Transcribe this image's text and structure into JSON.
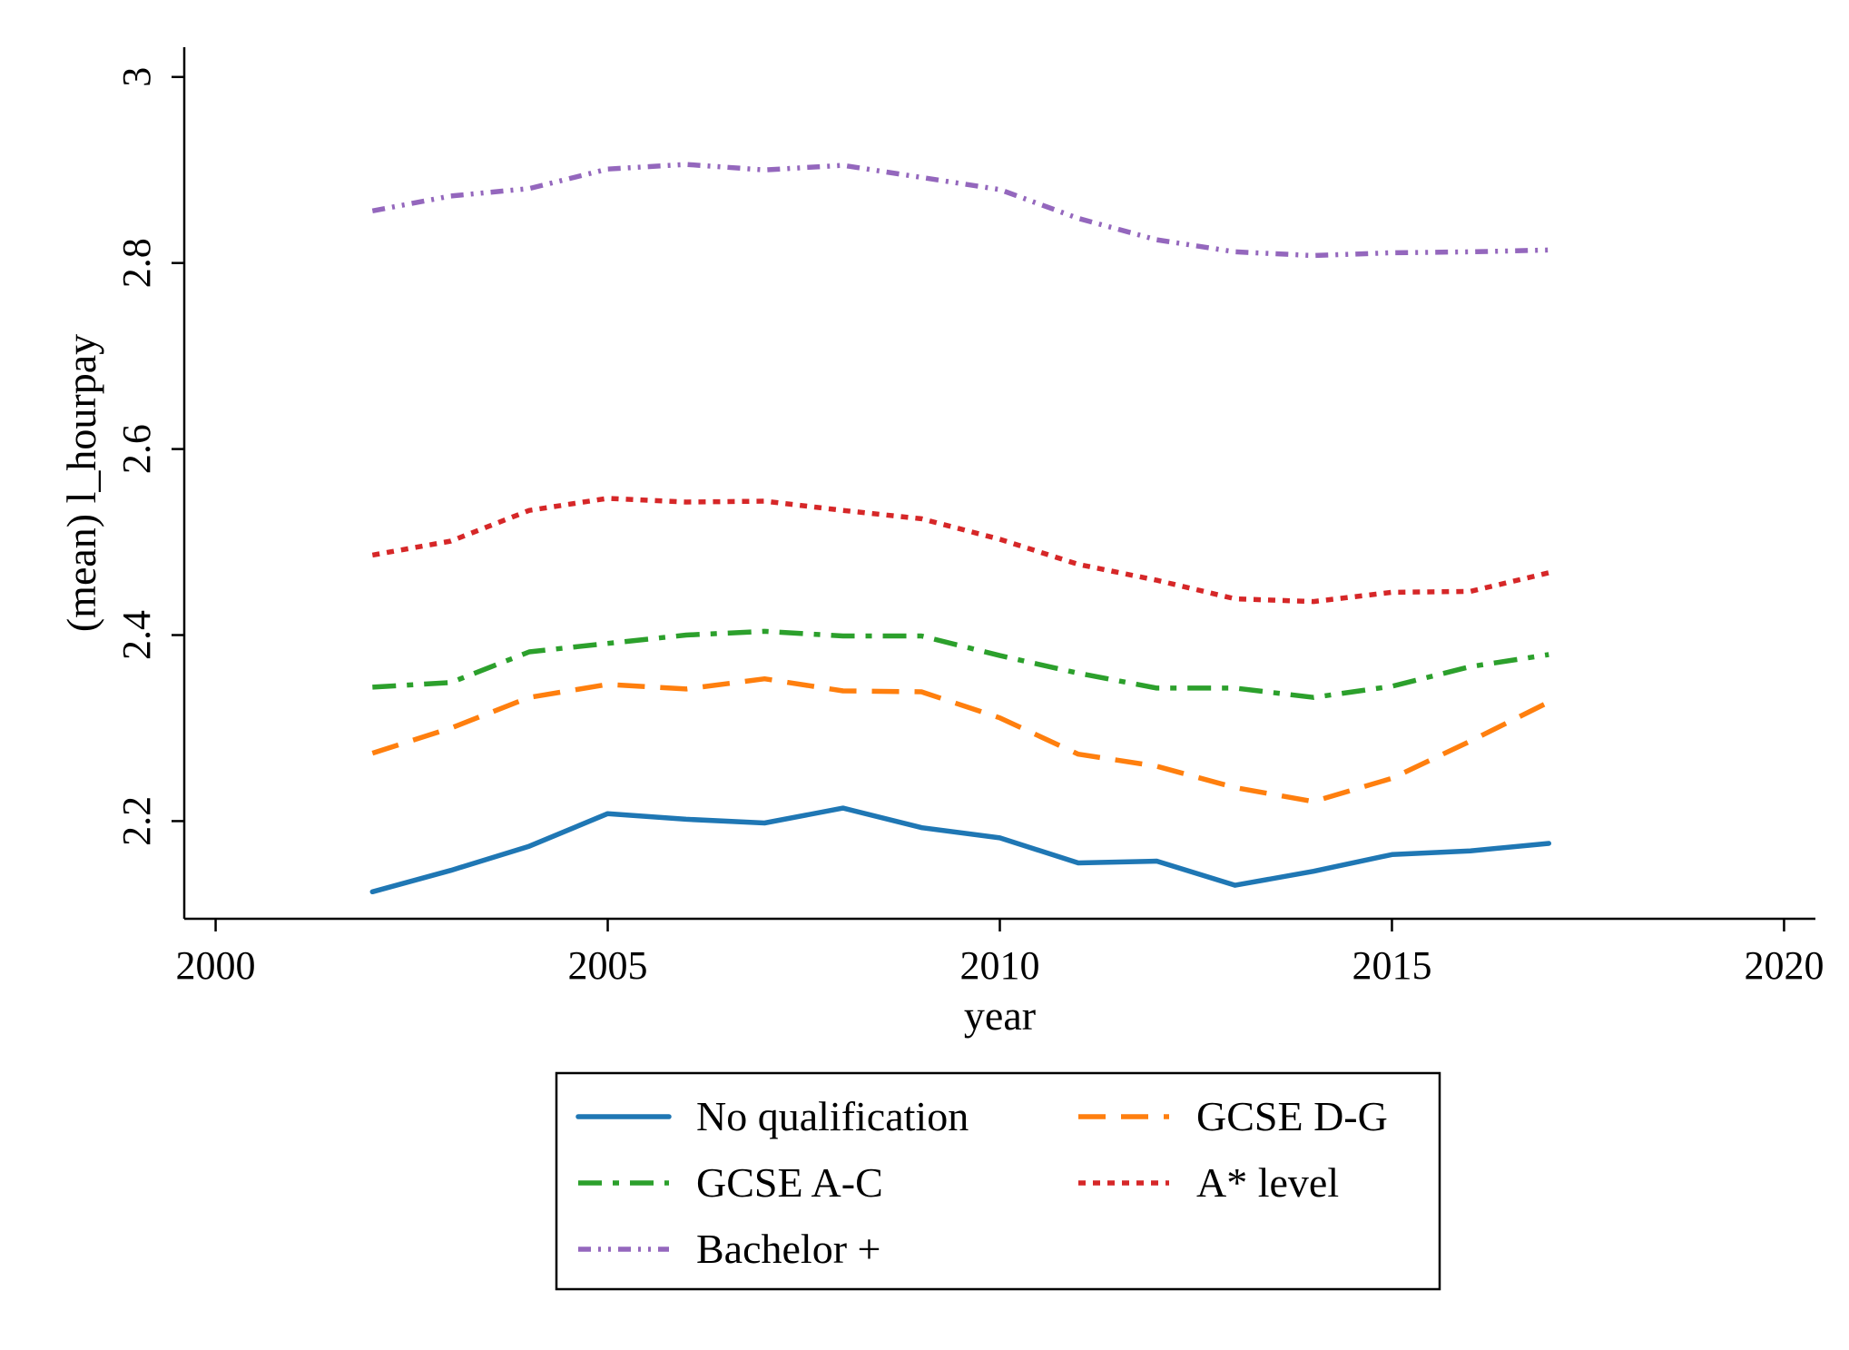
{
  "chart_data": {
    "type": "line",
    "title": "",
    "xlabel": "year",
    "ylabel": "(mean) l_hourpay",
    "xlim": [
      1999.6,
      2020.4
    ],
    "ylim": [
      2.095,
      3.032
    ],
    "x_ticks": [
      2000,
      2005,
      2010,
      2015,
      2020
    ],
    "x_tick_labels": [
      "2000",
      "2005",
      "2010",
      "2015",
      "2020"
    ],
    "y_ticks": [
      2.2,
      2.4,
      2.6,
      2.8,
      3.0
    ],
    "y_tick_labels": [
      "2.2",
      "2.4",
      "2.6",
      "2.8",
      "3"
    ],
    "grid": false,
    "legend_position": "bottom",
    "x": [
      2002,
      2003,
      2004,
      2005,
      2006,
      2007,
      2008,
      2009,
      2010,
      2011,
      2012,
      2013,
      2014,
      2015,
      2016,
      2017
    ],
    "series": [
      {
        "name": "No qualification",
        "color": "#1f77b4",
        "dash": "solid",
        "values": [
          2.124,
          2.147,
          2.173,
          2.208,
          2.202,
          2.198,
          2.214,
          2.193,
          2.182,
          2.155,
          2.157,
          2.131,
          2.146,
          2.164,
          2.168,
          2.176
        ]
      },
      {
        "name": "GCSE D-G",
        "color": "#ff7f0e",
        "dash": "dashed",
        "values": [
          2.273,
          2.3,
          2.333,
          2.347,
          2.342,
          2.353,
          2.34,
          2.339,
          2.311,
          2.272,
          2.259,
          2.236,
          2.221,
          2.246,
          2.286,
          2.328
        ]
      },
      {
        "name": "GCSE A-C",
        "color": "#2ca02c",
        "dash": "dashdot",
        "values": [
          2.344,
          2.349,
          2.382,
          2.391,
          2.4,
          2.404,
          2.399,
          2.399,
          2.378,
          2.359,
          2.343,
          2.343,
          2.333,
          2.345,
          2.366,
          2.379
        ]
      },
      {
        "name": "A* level",
        "color": "#d62728",
        "dash": "dotted",
        "values": [
          2.486,
          2.501,
          2.534,
          2.547,
          2.543,
          2.544,
          2.534,
          2.525,
          2.503,
          2.476,
          2.459,
          2.439,
          2.436,
          2.446,
          2.447,
          2.467
        ]
      },
      {
        "name": "Bachelor +",
        "color": "#9467bd",
        "dash": "dashdotdot",
        "values": [
          2.856,
          2.872,
          2.88,
          2.901,
          2.906,
          2.9,
          2.905,
          2.892,
          2.879,
          2.848,
          2.825,
          2.812,
          2.808,
          2.811,
          2.812,
          2.814
        ]
      }
    ]
  }
}
